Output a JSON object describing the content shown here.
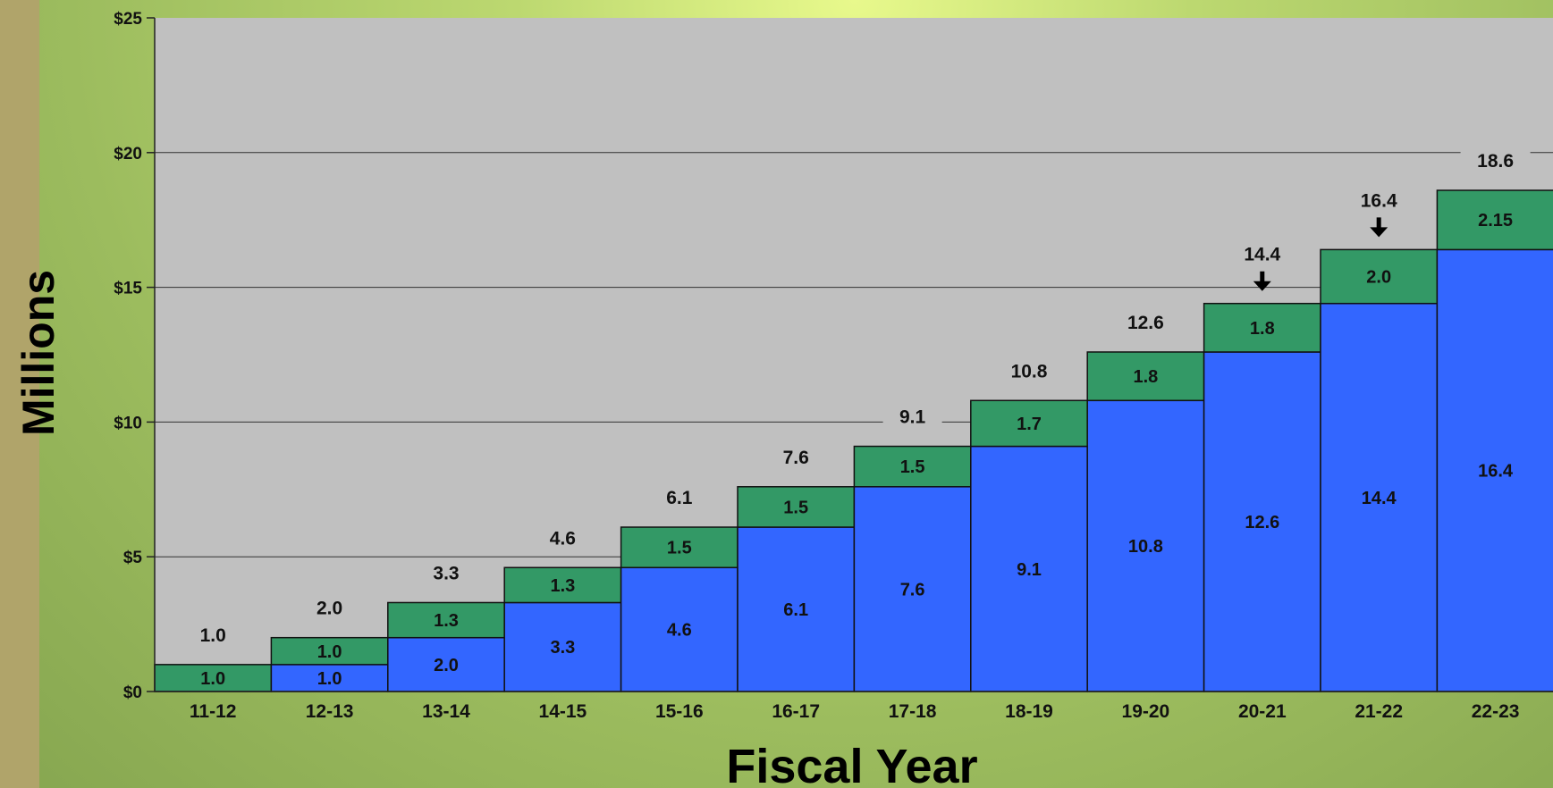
{
  "chart_data": {
    "type": "bar",
    "stacked": true,
    "xlabel": "Fiscal Year",
    "ylabel": "Millions",
    "ylim": [
      0,
      25
    ],
    "y_ticks": [
      "$0",
      "$5",
      "$10",
      "$15",
      "$20",
      "$25"
    ],
    "y_tick_values": [
      0,
      5,
      10,
      15,
      20,
      25
    ],
    "categories": [
      "11-12",
      "12-13",
      "13-14",
      "14-15",
      "15-16",
      "16-17",
      "17-18",
      "18-19",
      "19-20",
      "20-21",
      "21-22",
      "22-23"
    ],
    "series": [
      {
        "color": "#3366ff",
        "values": [
          0,
          1.0,
          2.0,
          3.3,
          4.6,
          6.1,
          7.6,
          9.1,
          10.8,
          12.6,
          14.4,
          16.4
        ],
        "labels": [
          "",
          "1.0",
          "2.0",
          "3.3",
          "4.6",
          "6.1",
          "7.6",
          "9.1",
          "10.8",
          "12.6",
          "14.4",
          "16.4"
        ]
      },
      {
        "color": "#339966",
        "values": [
          1.0,
          1.0,
          1.3,
          1.3,
          1.5,
          1.5,
          1.5,
          1.7,
          1.8,
          1.8,
          2.0,
          2.15
        ],
        "labels": [
          "1.0",
          "1.0",
          "1.3",
          "1.3",
          "1.5",
          "1.5",
          "1.5",
          "1.7",
          "1.8",
          "1.8",
          "2.0",
          "2.15"
        ]
      }
    ],
    "totals": [
      "1.0",
      "2.0",
      "3.3",
      "4.6",
      "6.1",
      "7.6",
      "9.1",
      "10.8",
      "12.6",
      "14.4",
      "16.4",
      "18.6"
    ],
    "total_values": [
      1.0,
      2.0,
      3.3,
      4.6,
      6.1,
      7.6,
      9.1,
      10.8,
      12.6,
      14.4,
      16.4,
      18.6
    ],
    "arrow_categories": [
      "20-21",
      "21-22"
    ],
    "plot_background": "#c0c0c0",
    "grid": true,
    "legend": "none"
  }
}
